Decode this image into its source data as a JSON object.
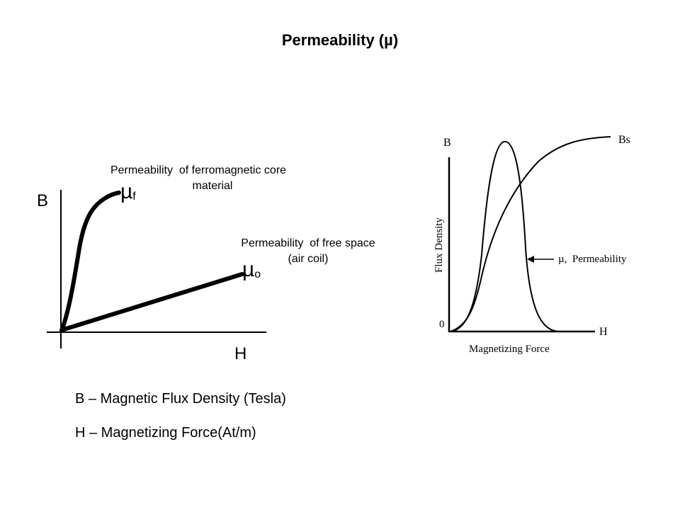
{
  "slide": {
    "title": "Permeability (µ)"
  },
  "left_diagram": {
    "y_axis_letter": "B",
    "x_axis_letter": "H",
    "mu_ferro_symbol": "µ",
    "mu_ferro_subscript": "f",
    "mu_free_symbol": "µ",
    "mu_free_subscript": "o",
    "ferro_annotation_line1": "Permeability  of ferromagnetic core",
    "ferro_annotation_line2": "material",
    "free_annotation_line1": "Permeability  of free space",
    "free_annotation_line2": "(air coil)"
  },
  "right_diagram": {
    "y_axis_letter": "B",
    "x_axis_letter": "H",
    "origin_label": "0",
    "y_axis_title": "Flux Density",
    "x_axis_title": "Magnetizing Force",
    "saturation_label": "Bs",
    "permeability_label": "µ,  Permeability"
  },
  "legend": {
    "b_definition": "B – Magnetic Flux Density (Tesla)",
    "h_definition": "H – Magnetizing Force(At/m)"
  }
}
